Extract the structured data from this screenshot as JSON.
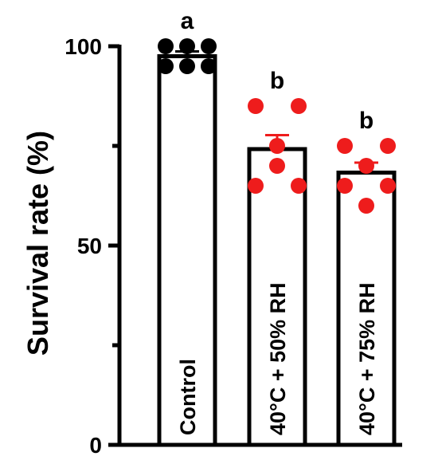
{
  "chart_data": {
    "type": "bar",
    "title": "",
    "xlabel": "",
    "ylabel": "Survival rate (%)",
    "ylim": [
      0,
      100
    ],
    "yticks": [
      0,
      50,
      100
    ],
    "grid": false,
    "categories": [
      "Control",
      "40°C + 50% RH",
      "40°C + 75% RH"
    ],
    "values": [
      97.5,
      74.2,
      68.3
    ],
    "sem": [
      1.2,
      3.5,
      2.5
    ],
    "significance_letters": [
      "a",
      "b",
      "b"
    ],
    "points": [
      [
        100,
        100,
        100,
        95,
        95,
        95
      ],
      [
        85,
        85,
        75,
        70,
        65,
        65
      ],
      [
        75,
        75,
        70,
        65,
        65,
        60
      ]
    ],
    "point_colors": [
      "#000000",
      "#ee1c1c",
      "#ee1c1c"
    ],
    "bar_fill": "#ffffff",
    "bar_stroke": "#000000"
  }
}
